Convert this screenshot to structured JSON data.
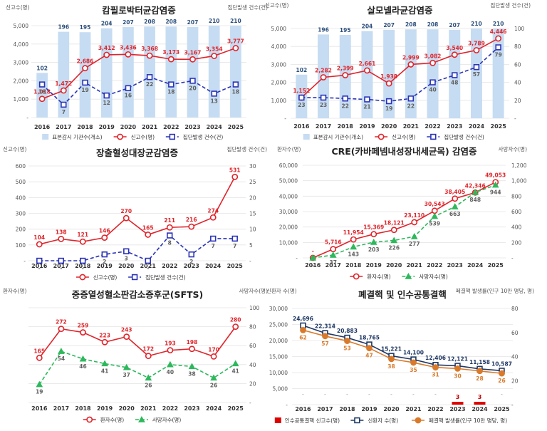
{
  "chart_data": [
    {
      "type": "bar+line",
      "title": "캄필로박터균감염증",
      "left_axis_label": "신고수(명)",
      "right_axis_label": "집단발생 건수(건)",
      "categories": [
        "2016",
        "2017",
        "2018",
        "2019",
        "2020",
        "2021",
        "2022",
        "2023",
        "2024",
        "2025"
      ],
      "left_ticks": [
        "-",
        "1,000",
        "2,000",
        "3,000",
        "4,000",
        "5,000"
      ],
      "left_ylim": [
        0,
        5000
      ],
      "right_ylim": [
        0,
        50
      ],
      "bars": {
        "name": "표본감시 기관수(개소)",
        "values": [
          102,
          196,
          195,
          204,
          207,
          208,
          208,
          207,
          210,
          210
        ],
        "labels": [
          "102",
          "196",
          "195",
          "204",
          "207",
          "208",
          "208",
          "207",
          "210",
          "210"
        ]
      },
      "lines": [
        {
          "name": "신고수(명)",
          "axis": "left",
          "style": "solid-circle",
          "values": [
            1018,
            1472,
            2686,
            3412,
            3436,
            3368,
            3173,
            3167,
            3354,
            3777
          ],
          "labels": [
            "1,018",
            "1,472",
            "2,686",
            "3,412",
            "3,436",
            "3,368",
            "3,173",
            "3,167",
            "3,354",
            "3,777"
          ]
        },
        {
          "name": "집단발생 건수(건)",
          "axis": "right",
          "style": "dash-square",
          "values": [
            18,
            7,
            19,
            12,
            16,
            22,
            18,
            20,
            13,
            18
          ],
          "labels": [
            "18",
            "7",
            "19",
            "12",
            "16",
            "22",
            "18",
            "20",
            "13",
            "18"
          ]
        }
      ],
      "legend": [
        "표본감시 기관수(개소)",
        "신고수(명)",
        "집단발생 건수(건)"
      ]
    },
    {
      "type": "bar+line",
      "title": "살모넬라균감염증",
      "left_axis_label": "신고수(명)",
      "right_axis_label": "집단발생 건수(건)",
      "categories": [
        "2016",
        "2017",
        "2018",
        "2019",
        "2020",
        "2021",
        "2022",
        "2023",
        "2024",
        "2025"
      ],
      "left_ticks": [
        "-",
        "1,000",
        "2,000",
        "3,000",
        "4,000",
        "5,000"
      ],
      "right_ticks": [
        "-",
        "20",
        "40",
        "60",
        "80",
        "100"
      ],
      "left_ylim": [
        0,
        5000
      ],
      "right_ylim": [
        0,
        100
      ],
      "bars": {
        "name": "표본감시 기관수(개소)",
        "values": [
          102,
          196,
          195,
          204,
          207,
          208,
          208,
          207,
          210,
          210
        ],
        "labels": [
          "102",
          "196",
          "195",
          "204",
          "207",
          "208",
          "208",
          "207",
          "210",
          "210"
        ]
      },
      "lines": [
        {
          "name": "신고수(명)",
          "axis": "left",
          "style": "solid-circle",
          "values": [
            1152,
            2282,
            2399,
            2661,
            1938,
            2999,
            3082,
            3540,
            3789,
            4446
          ],
          "labels": [
            "1,152",
            "2,282",
            "2,399",
            "2,661",
            "1,938",
            "2,999",
            "3,082",
            "3,540",
            "3,789",
            "4,446"
          ]
        },
        {
          "name": "집단발생 건수(건)",
          "axis": "right",
          "style": "dash-square",
          "values": [
            23,
            23,
            22,
            21,
            19,
            22,
            40,
            48,
            57,
            79
          ],
          "labels": [
            "23",
            "23",
            "22",
            "21",
            "19",
            "22",
            "40",
            "48",
            "57",
            "79"
          ]
        }
      ],
      "legend": [
        "표본감시 기관수(개소)",
        "신고수(명)",
        "집단발생 건수(건)"
      ]
    },
    {
      "type": "line",
      "title": "장출혈성대장균감염증",
      "left_axis_label": "신고수(명)",
      "right_axis_label": "집단발생 건수(건)",
      "categories": [
        "2016",
        "2017",
        "2018",
        "2019",
        "2020",
        "2021",
        "2022",
        "2023",
        "2024",
        "2025"
      ],
      "left_ticks": [
        "-",
        "100",
        "200",
        "300",
        "400",
        "500",
        "600"
      ],
      "right_ticks": [
        "-",
        "5",
        "10",
        "15",
        "20",
        "25",
        "30"
      ],
      "left_ylim": [
        0,
        600
      ],
      "right_ylim": [
        0,
        30
      ],
      "lines": [
        {
          "name": "신고수(명)",
          "axis": "left",
          "style": "solid-circle",
          "values": [
            104,
            138,
            121,
            146,
            270,
            165,
            211,
            216,
            274,
            531
          ],
          "labels": [
            "104",
            "138",
            "121",
            "146",
            "270",
            "165",
            "211",
            "216",
            "274",
            "531"
          ]
        },
        {
          "name": "집단발생 건수(건)",
          "axis": "right",
          "style": "dash-square",
          "values": [
            0,
            0,
            0,
            2,
            3,
            0,
            8,
            2,
            7,
            7
          ],
          "labels": [
            "-",
            "-",
            "-",
            "2",
            "3",
            "-",
            "8",
            "2",
            "7",
            "7"
          ]
        }
      ],
      "legend": [
        "신고수(명)",
        "집단발생 건수(건)"
      ]
    },
    {
      "type": "line",
      "title": "CRE(카바페넴내성장내세균목) 감염증",
      "left_axis_label": "환자수(명)",
      "right_axis_label": "사망자수(명)",
      "categories": [
        "2016",
        "2017",
        "2018",
        "2019",
        "2020",
        "2021",
        "2022",
        "2023",
        "2024",
        "2025"
      ],
      "left_ticks": [
        "-",
        "10,000",
        "20,000",
        "30,000",
        "40,000",
        "50,000",
        "60,000"
      ],
      "right_ticks": [
        "-",
        "200",
        "400",
        "600",
        "800",
        "1,000",
        "1,200"
      ],
      "left_ylim": [
        0,
        60000
      ],
      "right_ylim": [
        0,
        1200
      ],
      "lines": [
        {
          "name": "환자수(명)",
          "axis": "left",
          "style": "solid-circle",
          "values": [
            0,
            5716,
            11954,
            15369,
            18121,
            23110,
            30543,
            38405,
            42346,
            49053
          ],
          "labels": [
            "-",
            "5,716",
            "11,954",
            "15,369",
            "18,121",
            "23,110",
            "30,543",
            "38,405",
            "42,346",
            "49,053"
          ]
        },
        {
          "name": "사망자수(명)",
          "axis": "right",
          "style": "dash-triangle",
          "values": [
            0,
            37,
            143,
            203,
            226,
            277,
            539,
            663,
            848,
            944
          ],
          "labels": [
            "-",
            "37",
            "143",
            "203",
            "226",
            "277",
            "539",
            "663",
            "848",
            "944"
          ]
        }
      ],
      "legend": [
        "환자수(명)",
        "사망자수(명)"
      ]
    },
    {
      "type": "line",
      "title": "중증열성혈소판감소증후군(SFTS)",
      "left_axis_label": "환자수(명)",
      "right_axis_label": "사망자수(명)",
      "categories": [
        "2016",
        "2017",
        "2018",
        "2019",
        "2020",
        "2021",
        "2022",
        "2023",
        "2024",
        "2025"
      ],
      "right_ticks": [
        "-",
        "20",
        "40",
        "60",
        "80",
        "100"
      ],
      "left_ylim": [
        0,
        350
      ],
      "right_ylim": [
        0,
        100
      ],
      "lines": [
        {
          "name": "환자수(명)",
          "axis": "left",
          "style": "solid-circle",
          "values": [
            165,
            272,
            259,
            223,
            243,
            172,
            193,
            198,
            170,
            280
          ],
          "labels": [
            "165",
            "272",
            "259",
            "223",
            "243",
            "172",
            "193",
            "198",
            "170",
            "280"
          ]
        },
        {
          "name": "사망자수(명)",
          "axis": "right",
          "style": "dash-triangle",
          "values": [
            19,
            54,
            46,
            41,
            37,
            26,
            40,
            38,
            26,
            41
          ],
          "labels": [
            "19",
            "54",
            "46",
            "41",
            "37",
            "26",
            "40",
            "38",
            "26",
            "41"
          ]
        }
      ],
      "legend": [
        "환자수(명)",
        "사망자수(명)"
      ]
    },
    {
      "type": "bar+line",
      "title": "폐결핵 및 인수공통결핵",
      "left_axis_label": "신환자 수(명)",
      "right_axis_label": "폐결핵 발생률(인구 10만 명당, 명)",
      "categories": [
        "2016",
        "2017",
        "2018",
        "2019",
        "2020",
        "2021",
        "2022",
        "2023",
        "2024",
        "2025"
      ],
      "left_ticks": [
        "-",
        "5,000",
        "10,000",
        "15,000",
        "20,000",
        "25,000",
        "30,000"
      ],
      "right_ticks": [
        "-",
        "20",
        "40",
        "60",
        "80"
      ],
      "left_ylim": [
        0,
        30000
      ],
      "right_ylim": [
        0,
        80
      ],
      "bars": {
        "name": "인수공통결핵 신고수(명)",
        "values": [
          0,
          0,
          0,
          0,
          0,
          0,
          0,
          3,
          3,
          0
        ],
        "labels": [
          "-",
          "-",
          "-",
          "-",
          "-",
          "-",
          "-",
          "3",
          "3",
          "-"
        ]
      },
      "lines": [
        {
          "name": "신환자 수(명)",
          "axis": "left",
          "style": "navy-square",
          "values": [
            24696,
            22314,
            20883,
            18765,
            15221,
            14100,
            12406,
            12121,
            11158,
            10587
          ],
          "labels": [
            "24,696",
            "22,314",
            "20,883",
            "18,765",
            "15,221",
            "14,100",
            "12,406",
            "12,121",
            "11,158",
            "10,587"
          ]
        },
        {
          "name": "폐결핵 발생률(인구 10만 명당, 명)",
          "axis": "right",
          "style": "orange-circle",
          "values": [
            62,
            57,
            53,
            47,
            38,
            35,
            31,
            30,
            28,
            26
          ],
          "labels": [
            "62",
            "57",
            "53",
            "47",
            "38",
            "35",
            "31",
            "30",
            "28",
            "26"
          ]
        }
      ],
      "legend": [
        "인수공통결핵 신고수(명)",
        "신환자 수(명)",
        "폐결핵 발생률(인구 10만 명당, 명)"
      ]
    }
  ],
  "colors": {
    "bar": "#c6dcf2",
    "red": "#e0242b",
    "blue": "#2a33b5",
    "green": "#2eb85c",
    "navy": "#1f3864",
    "orange": "#d97a2b",
    "gray": "#606060",
    "tb_bar": "#e00000"
  }
}
